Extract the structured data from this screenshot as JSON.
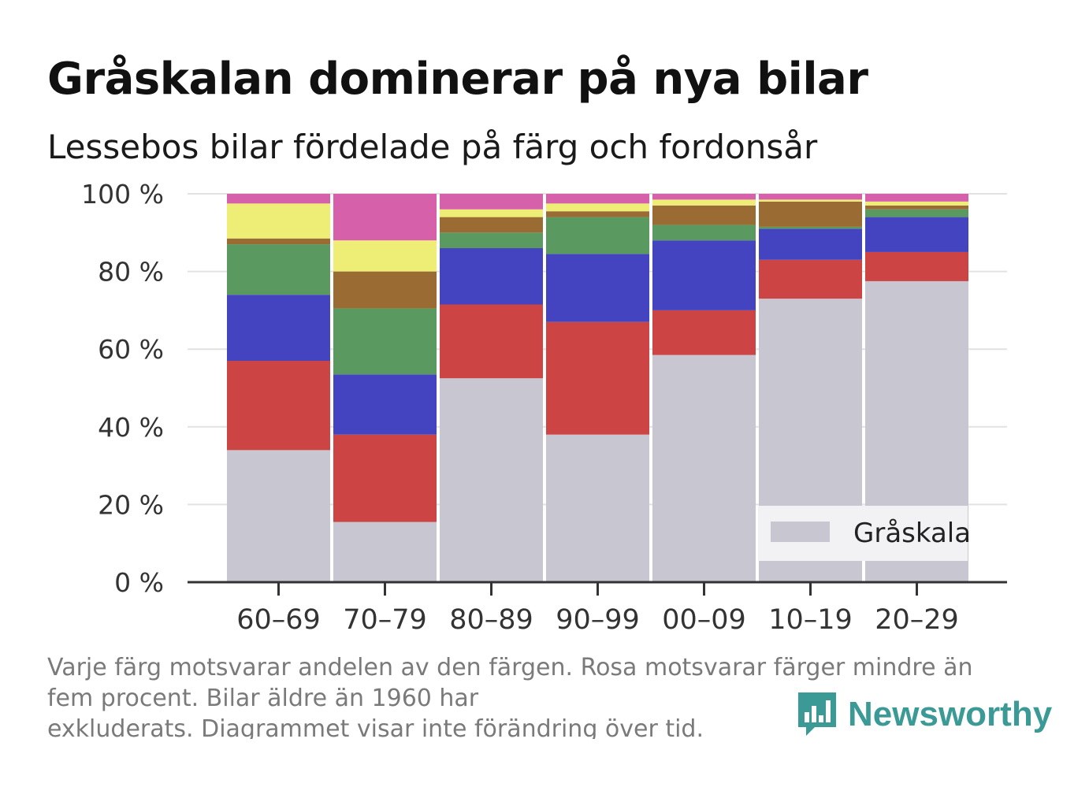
{
  "title": "Gråskalan dominerar på nya bilar",
  "subtitle": "Lessebos bilar fördelade på färg och fordonsår",
  "footnote": [
    "Varje färg motsvarar andelen av den färgen. Rosa motsvarar färger mindre än",
    "fem procent. Bilar äldre än 1960 har",
    "exkluderats. Diagrammet visar inte förändring över tid."
  ],
  "brand": {
    "name": "Newsworthy",
    "icon": "newsworthy-logo-icon",
    "color": "#3b9a95"
  },
  "chart_data": {
    "type": "bar",
    "stacked": true,
    "categories": [
      "60–69",
      "70–79",
      "80–89",
      "90–99",
      "00–09",
      "10–19",
      "20–29"
    ],
    "series": [
      {
        "name": "Gråskala",
        "color": "#c8c6d0",
        "values": [
          34,
          15.5,
          52.5,
          38,
          58.5,
          73,
          77.5
        ]
      },
      {
        "color": "#cc4444",
        "values": [
          23,
          22.5,
          19,
          29,
          11.5,
          10,
          7.5
        ]
      },
      {
        "color": "#4444c0",
        "values": [
          17,
          15.5,
          14.5,
          17.5,
          18,
          8,
          9
        ]
      },
      {
        "color": "#5a9a60",
        "values": [
          13,
          17,
          4,
          9.5,
          4,
          0.5,
          2
        ]
      },
      {
        "color": "#9a6c34",
        "values": [
          1.5,
          9.5,
          4,
          1.5,
          5,
          6.5,
          1
        ]
      },
      {
        "color": "#eeee77",
        "values": [
          9,
          8,
          2,
          2,
          1.5,
          0.5,
          1
        ]
      },
      {
        "color": "#d660aa",
        "values": [
          2.5,
          12,
          4,
          2.5,
          1.5,
          1.5,
          2
        ]
      }
    ],
    "y_ticks": [
      "0 %",
      "20 %",
      "40 %",
      "60 %",
      "80 %",
      "100 %"
    ],
    "ylim": [
      0,
      100
    ],
    "grid": true,
    "legend": {
      "position": "bottom-right",
      "entries": [
        "Gråskala"
      ]
    }
  }
}
